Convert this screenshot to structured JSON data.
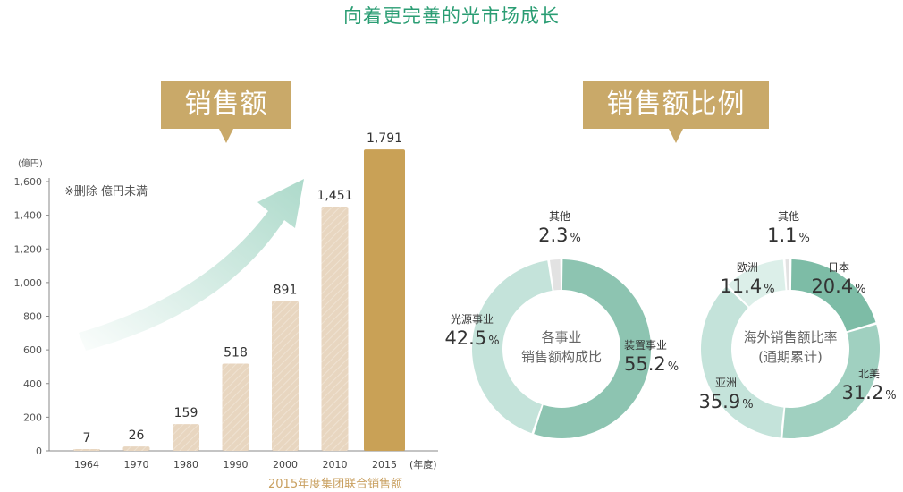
{
  "page_title": "向着更完善的光市场成长",
  "banners": {
    "left": "销售额",
    "right": "销售额比例"
  },
  "note": "※删除 億円未満",
  "source_label": "2015年度集团联合销售额",
  "colors": {
    "accent": "#2a9d73",
    "banner": "#c9a969",
    "bar_light": "#e8d6c0",
    "bar_highlight": "#c9a156",
    "teal_dark": "#8dc4b1",
    "teal_light": "#c4e3da"
  },
  "chart_data": [
    {
      "type": "bar",
      "yunit": "(億円)",
      "xunit": "(年度)",
      "categories": [
        "1964",
        "1970",
        "1980",
        "1990",
        "2000",
        "2010",
        "2015"
      ],
      "values": [
        7,
        26,
        159,
        518,
        891,
        1451,
        1791
      ],
      "value_labels": [
        "7",
        "26",
        "159",
        "518",
        "891",
        "1,451",
        "1,791"
      ],
      "yticks": [
        0,
        200,
        400,
        600,
        800,
        1000,
        1200,
        1400,
        1600
      ],
      "ytick_labels": [
        "0",
        "200",
        "400",
        "600",
        "800",
        "1,000",
        "1,200",
        "1,400",
        "1,600"
      ],
      "ylim": [
        0,
        1600
      ],
      "highlight_index": 6
    },
    {
      "type": "pie",
      "center_label": [
        "各事业",
        "销售额构成比"
      ],
      "slices": [
        {
          "name": "装置事业",
          "value": 55.2,
          "value_label": "55.2",
          "color": "#8dc4b1"
        },
        {
          "name": "光源事业",
          "value": 42.5,
          "value_label": "42.5",
          "color": "#c4e3da"
        },
        {
          "name": "其他",
          "value": 2.3,
          "value_label": "2.3",
          "color": "#e2e2e2"
        }
      ],
      "unit": "%"
    },
    {
      "type": "pie",
      "center_label": [
        "海外销售额比率",
        "(通期累计)"
      ],
      "slices": [
        {
          "name": "日本",
          "value": 20.4,
          "value_label": "20.4",
          "color": "#7dbca6"
        },
        {
          "name": "北美",
          "value": 31.2,
          "value_label": "31.2",
          "color": "#a0d0c0"
        },
        {
          "name": "亚洲",
          "value": 35.9,
          "value_label": "35.9",
          "color": "#c4e3da"
        },
        {
          "name": "欧洲",
          "value": 11.4,
          "value_label": "11.4",
          "color": "#dcefe9"
        },
        {
          "name": "其他",
          "value": 1.1,
          "value_label": "1.1",
          "color": "#e2e2e2"
        }
      ],
      "unit": "%"
    }
  ]
}
